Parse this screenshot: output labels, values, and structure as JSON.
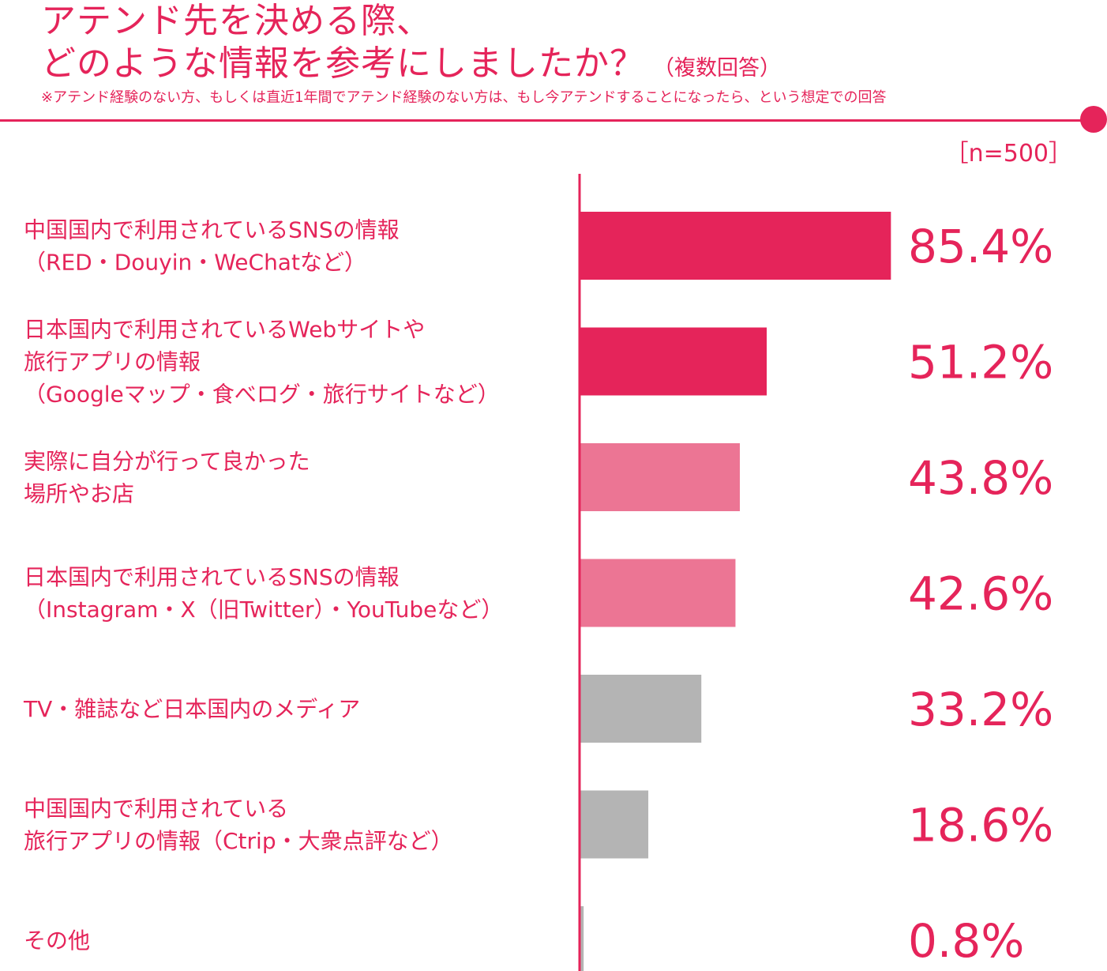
{
  "header": {
    "title_line1": "アテンド先を決める際、",
    "title_line2": "どのような情報を参考にしましたか？",
    "title_suffix": "（複数回答）",
    "note": "※アテンド経験のない方、もしくは直近1年間でアテンド経験のない方は、もし今アテンドすることになったら、という想定での回答",
    "sample_size": "［n=500］"
  },
  "colors": {
    "accent": "#e5245a",
    "bar_dark": "#e5245a",
    "bar_light": "#ec7594",
    "bar_gray": "#b4b4b4"
  },
  "chart_data": {
    "type": "bar",
    "orientation": "horizontal",
    "unit": "%",
    "xlim": [
      0,
      100
    ],
    "grid": false,
    "categories": [
      [
        "中国国内で利用されているSNSの情報",
        "（RED・Douyin・WeChatなど）"
      ],
      [
        "日本国内で利用されているWebサイトや",
        "旅行アプリの情報",
        "（Googleマップ・食べログ・旅行サイトなど）"
      ],
      [
        "実際に自分が行って良かった",
        "場所やお店"
      ],
      [
        "日本国内で利用されているSNSの情報",
        "（Instagram・X（旧Twitter）・YouTubeなど）"
      ],
      [
        "TV・雑誌など日本国内のメディア"
      ],
      [
        "中国国内で利用されている",
        "旅行アプリの情報（Ctrip・大衆点評など）"
      ],
      [
        "その他"
      ]
    ],
    "values": [
      85.4,
      51.2,
      43.8,
      42.6,
      33.2,
      18.6,
      0.8
    ],
    "value_labels": [
      "85.4%",
      "51.2%",
      "43.8%",
      "42.6%",
      "33.2%",
      "18.6%",
      "0.8%"
    ],
    "bar_color_keys": [
      "bar_dark",
      "bar_dark",
      "bar_light",
      "bar_light",
      "bar_gray",
      "bar_gray",
      "bar_gray"
    ]
  }
}
